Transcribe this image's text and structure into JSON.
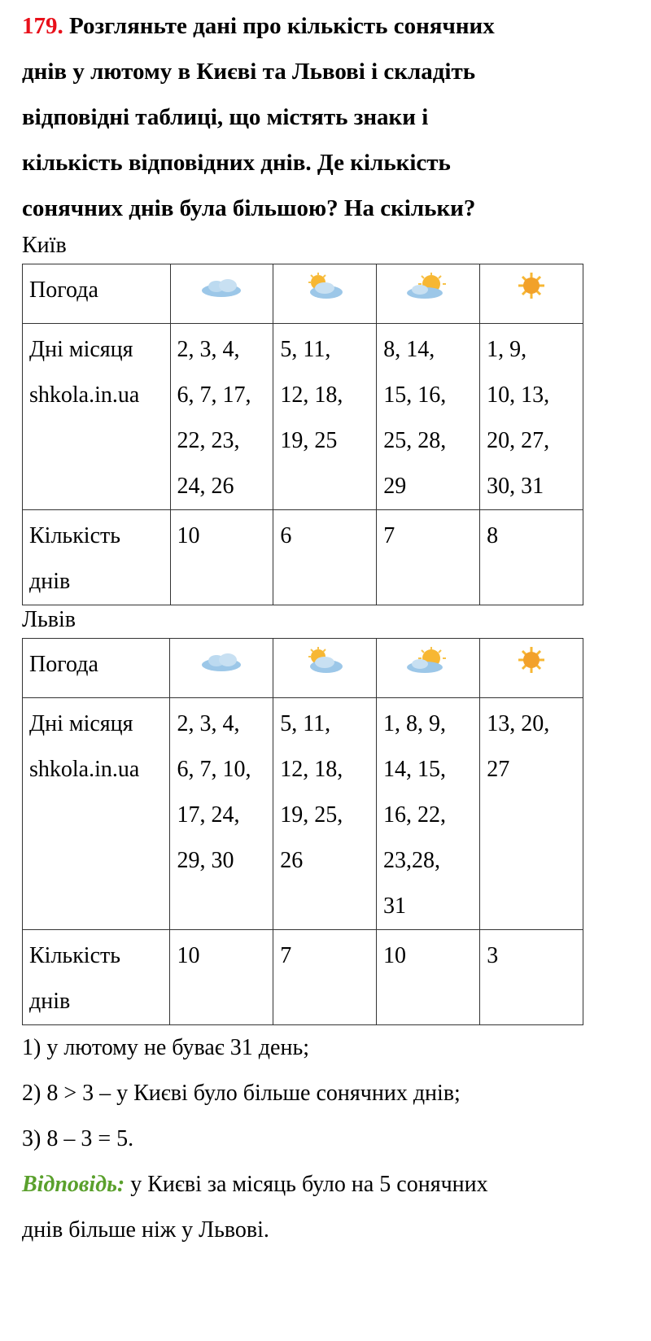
{
  "task": {
    "number": "179.",
    "lines": [
      "Розгляньте дані про кількість сонячних",
      "днів у лютому в  Києві та Львові і складіть",
      "відповідні таблиці, що містять знаки і",
      "кількість відповідних днів. Де кількість",
      "сонячних днів була більшою? На скільки?"
    ]
  },
  "colors": {
    "number": "#e8101a",
    "answer_label": "#5aa02c"
  },
  "weather_icons": [
    "cloudy-icon",
    "partly-cloudy-icon",
    "mostly-sunny-icon",
    "sunny-icon"
  ],
  "tables": [
    {
      "city": "Київ",
      "row_labels": {
        "weather": "Погода",
        "days": "Дні місяця",
        "watermark": "shkola.in.ua",
        "count": "Кількість днів"
      },
      "days": [
        [
          "2, 3, 4,",
          "6, 7, 17,",
          "22, 23,",
          "24, 26"
        ],
        [
          "5, 11,",
          "12, 18,",
          "19, 25"
        ],
        [
          "8, 14,",
          "15, 16,",
          "25, 28,",
          "29"
        ],
        [
          "1, 9,",
          "10, 13,",
          "20, 27,",
          "30, 31"
        ]
      ],
      "counts": [
        "10",
        "6",
        "7",
        "8"
      ]
    },
    {
      "city": "Львів",
      "row_labels": {
        "weather": "Погода",
        "days": "Дні місяця",
        "watermark": "shkola.in.ua",
        "count": "Кількість днів"
      },
      "days": [
        [
          "2, 3, 4,",
          "6, 7, 10,",
          "17, 24,",
          "29, 30"
        ],
        [
          "5, 11,",
          "12, 18,",
          "19, 25,",
          "26"
        ],
        [
          "1, 8, 9,",
          "14, 15,",
          "16, 22,",
          "23,28,",
          "31"
        ],
        [
          "13, 20,",
          "27"
        ]
      ],
      "counts": [
        "10",
        "7",
        "10",
        "3"
      ]
    }
  ],
  "solution": [
    "1) у лютому не буває 31 день;",
    "2) 8 > 3 – у Києві було більше сонячних днів;",
    "3) 8 – 3 = 5."
  ],
  "answer": {
    "label": "Відповідь:",
    "text": " у Києві за місяць було на 5 сонячних",
    "text2": "днів більше ніж у Львові."
  }
}
